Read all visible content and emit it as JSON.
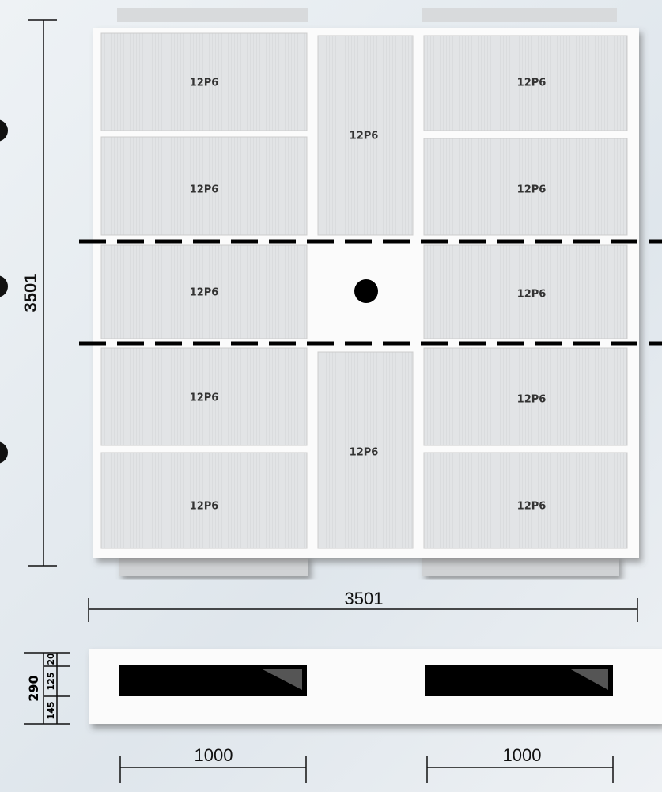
{
  "panels": [
    "12P6",
    "12P6",
    "12P6",
    "12P6",
    "12P6",
    "12P6",
    "12P6",
    "12P6",
    "12P6",
    "12P6",
    "12P6",
    "12P6"
  ],
  "top_view": {
    "height": 3501,
    "width": 3501
  },
  "side_view": {
    "height": 290,
    "parts": [
      145,
      125,
      20
    ],
    "openings": [
      1000,
      1000
    ]
  }
}
